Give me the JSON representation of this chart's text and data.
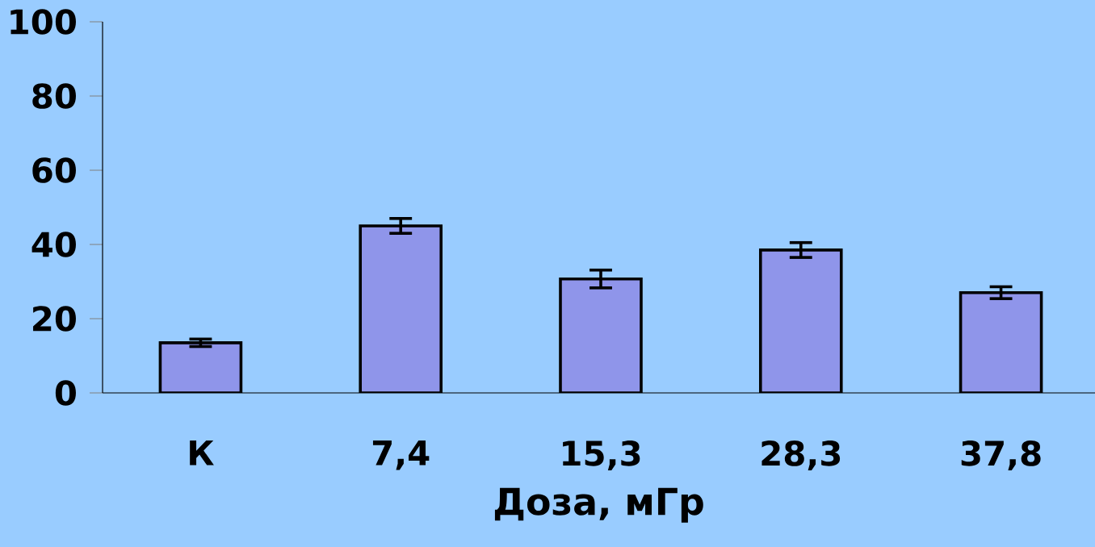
{
  "chart_data": {
    "type": "bar",
    "xlabel": "Доза, мГр",
    "categories": [
      "К",
      "7,4",
      "15,3",
      "28,3",
      "37,8"
    ],
    "values": [
      13.5,
      45,
      30.7,
      38.5,
      27
    ],
    "errors": [
      1,
      2,
      2.4,
      2,
      1.6
    ],
    "color": "#8f95ea",
    "ylim": [
      0,
      100
    ],
    "yticks": [
      0,
      20,
      40,
      60,
      80,
      100
    ]
  }
}
